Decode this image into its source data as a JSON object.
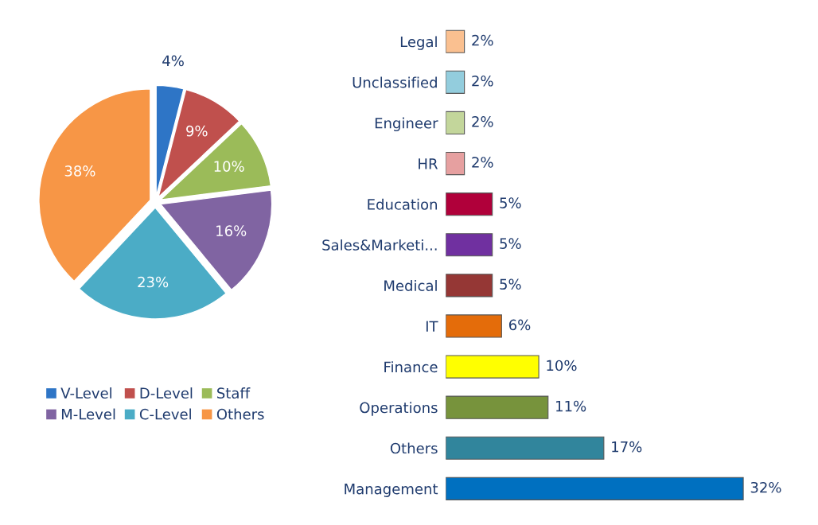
{
  "chart_data": [
    {
      "type": "pie",
      "categories": [
        "V-Level",
        "D-Level",
        "Staff",
        "M-Level",
        "C-Level",
        "Others"
      ],
      "values": [
        4,
        9,
        10,
        16,
        23,
        38
      ],
      "colors": [
        "#2e75c6",
        "#c0504d",
        "#9bbb59",
        "#8064a2",
        "#4bacc6",
        "#f79646"
      ],
      "value_labels": [
        "4%",
        "9%",
        "10%",
        "16%",
        "23%",
        "38%"
      ],
      "legend": "bottom"
    },
    {
      "type": "bar",
      "orientation": "horizontal",
      "categories": [
        "Legal",
        "Unclassified",
        "Engineer",
        "HR",
        "Education",
        "Sales&Marketi...",
        "Medical",
        "IT",
        "Finance",
        "Operations",
        "Others",
        "Management"
      ],
      "values": [
        2,
        2,
        2,
        2,
        5,
        5,
        5,
        6,
        10,
        11,
        17,
        32
      ],
      "colors": [
        "#fac090",
        "#93cddd",
        "#c3d69b",
        "#e6a0a0",
        "#b0003a",
        "#7030a0",
        "#953735",
        "#e46c0a",
        "#ffff00",
        "#77933c",
        "#31859c",
        "#0070c0"
      ],
      "value_labels": [
        "2%",
        "2%",
        "2%",
        "2%",
        "5%",
        "5%",
        "5%",
        "6%",
        "10%",
        "11%",
        "17%",
        "32%"
      ]
    }
  ]
}
